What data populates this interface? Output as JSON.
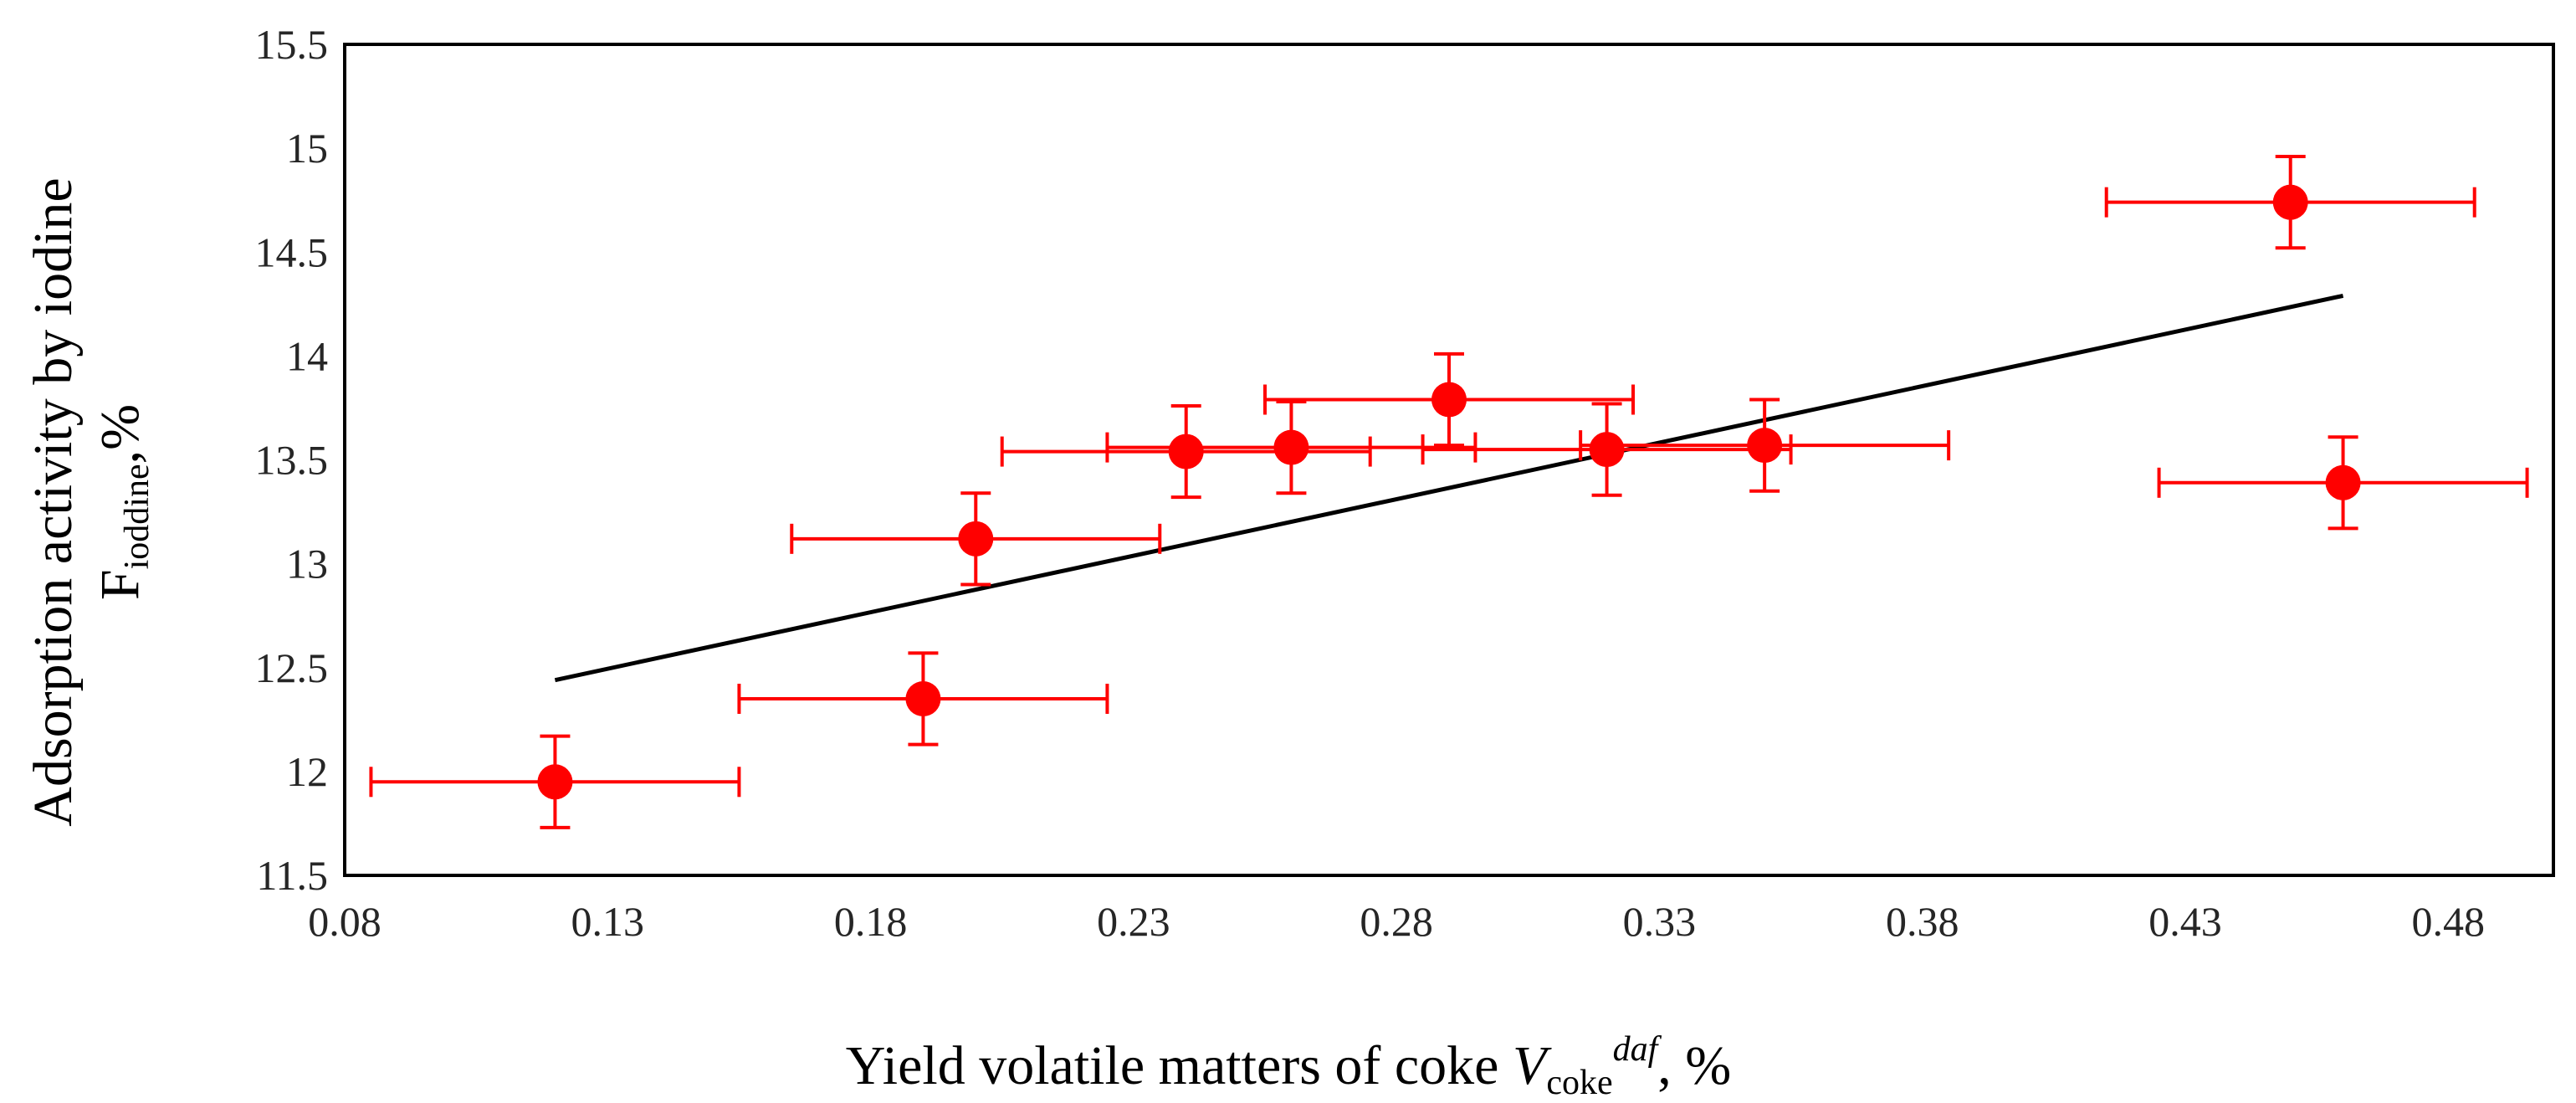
{
  "chart_data": {
    "type": "scatter",
    "x_ticks": [
      "0.08",
      "0.13",
      "0.18",
      "0.23",
      "0.28",
      "0.33",
      "0.38",
      "0.43",
      "0.48"
    ],
    "y_ticks": [
      "11.5",
      "12",
      "12.5",
      "13",
      "13.5",
      "14",
      "14.5",
      "15",
      "15.5"
    ],
    "xlim": [
      0.08,
      0.5
    ],
    "ylim": [
      11.5,
      15.5
    ],
    "grid": false,
    "xlabel": {
      "text": "Yield volatile matters of coke ",
      "symbol": "V",
      "subscript": "coke",
      "superscript": "daf",
      "suffix": ", %"
    },
    "ylabel": {
      "line1": "Adsorption activity by iodine",
      "symbol": "F",
      "subscript": "ioddine",
      "suffix": ",%"
    },
    "points": [
      {
        "x": 0.12,
        "y": 11.95,
        "xerr": 0.035,
        "yerr": 0.22
      },
      {
        "x": 0.19,
        "y": 12.35,
        "xerr": 0.035,
        "yerr": 0.22
      },
      {
        "x": 0.2,
        "y": 13.12,
        "xerr": 0.035,
        "yerr": 0.22
      },
      {
        "x": 0.24,
        "y": 13.54,
        "xerr": 0.035,
        "yerr": 0.22
      },
      {
        "x": 0.26,
        "y": 13.56,
        "xerr": 0.035,
        "yerr": 0.22
      },
      {
        "x": 0.29,
        "y": 13.79,
        "xerr": 0.035,
        "yerr": 0.22
      },
      {
        "x": 0.32,
        "y": 13.55,
        "xerr": 0.035,
        "yerr": 0.22
      },
      {
        "x": 0.35,
        "y": 13.57,
        "xerr": 0.035,
        "yerr": 0.22
      },
      {
        "x": 0.45,
        "y": 14.74,
        "xerr": 0.035,
        "yerr": 0.22
      },
      {
        "x": 0.46,
        "y": 13.39,
        "xerr": 0.035,
        "yerr": 0.22
      }
    ],
    "trendline": {
      "x": [
        0.12,
        0.46
      ],
      "y": [
        12.44,
        14.29
      ]
    },
    "colors": {
      "points": "#ff0000",
      "trendline": "#000000",
      "axes": "#000000"
    }
  }
}
